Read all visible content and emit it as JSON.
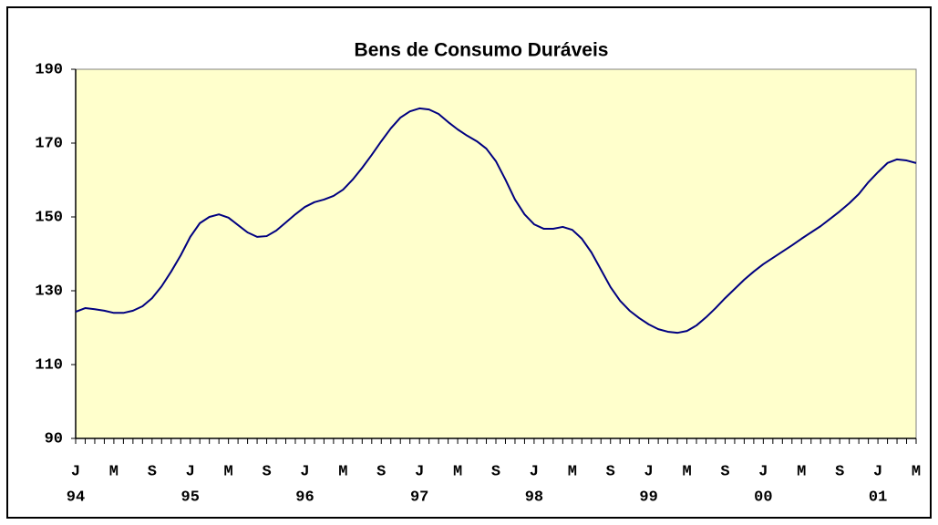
{
  "chart_data": {
    "type": "line",
    "title": "Bens de Consumo Duráveis",
    "categories": [
      "J",
      null,
      null,
      null,
      "M",
      null,
      null,
      null,
      "S",
      null,
      null,
      null,
      "J",
      null,
      null,
      null,
      "M",
      null,
      null,
      null,
      "S",
      null,
      null,
      null,
      "J",
      null,
      null,
      null,
      "M",
      null,
      null,
      null,
      "S",
      null,
      null,
      null,
      "J",
      null,
      null,
      null,
      "M",
      null,
      null,
      null,
      "S",
      null,
      null,
      null,
      "J",
      null,
      null,
      null,
      "M",
      null,
      null,
      null,
      "S",
      null,
      null,
      null,
      "J",
      null,
      null,
      null,
      "M",
      null,
      null,
      null,
      "S",
      null,
      null,
      null,
      "J",
      null,
      null,
      null,
      "M",
      null,
      null,
      null,
      "S",
      null,
      null,
      null,
      "J",
      null,
      null,
      null,
      "M"
    ],
    "years": [
      "94",
      "95",
      "96",
      "97",
      "98",
      "99",
      "00",
      "01"
    ],
    "series": [
      {
        "color": "#000080",
        "values": [
          124.3,
          125.3,
          125,
          124.6,
          124,
          124,
          124.6,
          125.8,
          128,
          131.2,
          135.2,
          139.6,
          144.6,
          148.3,
          150,
          150.7,
          149.8,
          147.8,
          145.8,
          144.6,
          144.8,
          146.3,
          148.5,
          150.7,
          152.7,
          154,
          154.7,
          155.7,
          157.4,
          160.1,
          163.3,
          166.8,
          170.5,
          174,
          176.9,
          178.6,
          179.4,
          179.1,
          177.9,
          175.7,
          173.7,
          172,
          170.5,
          168.5,
          165.1,
          160.1,
          154.7,
          150.7,
          148,
          146.8,
          146.8,
          147.3,
          146.5,
          144.1,
          140.4,
          135.7,
          131,
          127.3,
          124.6,
          122.6,
          120.9,
          119.6,
          118.9,
          118.6,
          119.1,
          120.6,
          122.8,
          125.3,
          128,
          130.5,
          133,
          135.2,
          137.2,
          138.9,
          140.6,
          142.3,
          144.1,
          145.8,
          147.5,
          149.5,
          151.5,
          153.7,
          156.2,
          159.4,
          162.1,
          164.6,
          165.6,
          165.3,
          164.6
        ]
      }
    ],
    "ylim": [
      90,
      190
    ],
    "yticks": [
      90,
      110,
      130,
      150,
      170,
      190
    ],
    "grid": false,
    "background": "#ffffcc"
  }
}
